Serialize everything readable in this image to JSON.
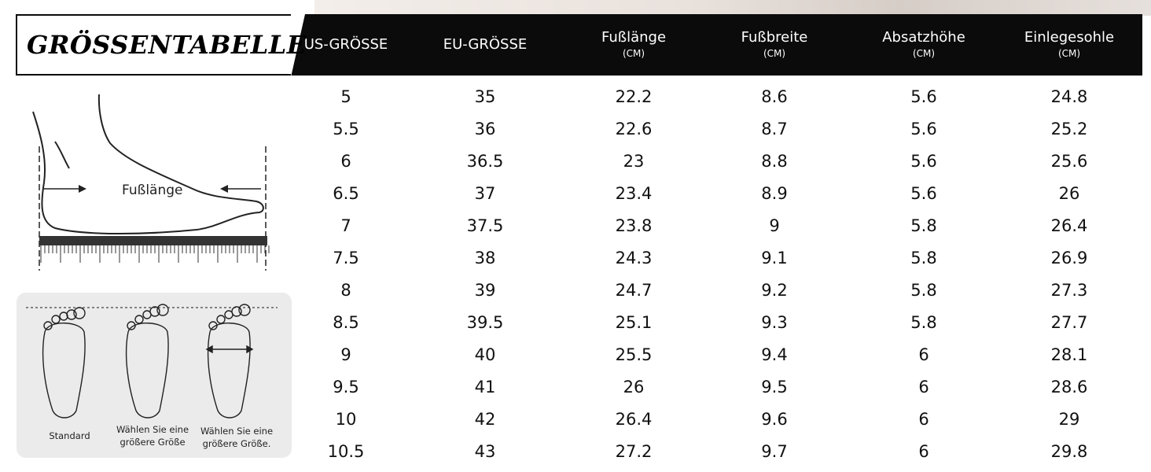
{
  "title": "GRÖSSENTABELLE",
  "columns": [
    {
      "main": "US-GRÖSSE",
      "unit": ""
    },
    {
      "main": "EU-GRÖSSE",
      "unit": ""
    },
    {
      "main": "Fußlänge",
      "unit": "(CM)"
    },
    {
      "main": "Fußbreite",
      "unit": "(CM)"
    },
    {
      "main": "Absatzhöhe",
      "unit": "(CM)"
    },
    {
      "main": "Einlegesohle",
      "unit": "(CM)"
    }
  ],
  "rows": [
    [
      "5",
      "35",
      "22.2",
      "8.6",
      "5.6",
      "24.8"
    ],
    [
      "5.5",
      "36",
      "22.6",
      "8.7",
      "5.6",
      "25.2"
    ],
    [
      "6",
      "36.5",
      "23",
      "8.8",
      "5.6",
      "25.6"
    ],
    [
      "6.5",
      "37",
      "23.4",
      "8.9",
      "5.6",
      "26"
    ],
    [
      "7",
      "37.5",
      "23.8",
      "9",
      "5.8",
      "26.4"
    ],
    [
      "7.5",
      "38",
      "24.3",
      "9.1",
      "5.8",
      "26.9"
    ],
    [
      "8",
      "39",
      "24.7",
      "9.2",
      "5.8",
      "27.3"
    ],
    [
      "8.5",
      "39.5",
      "25.1",
      "9.3",
      "5.8",
      "27.7"
    ],
    [
      "9",
      "40",
      "25.5",
      "9.4",
      "6",
      "28.1"
    ],
    [
      "9.5",
      "41",
      "26",
      "9.5",
      "6",
      "28.6"
    ],
    [
      "10",
      "42",
      "26.4",
      "9.6",
      "6",
      "29"
    ],
    [
      "10.5",
      "43",
      "27.2",
      "9.7",
      "6",
      "29.8"
    ]
  ],
  "illustration": {
    "foot_label": "Fußlänge"
  },
  "toe_panel": {
    "captions": [
      {
        "line1": "Standard",
        "line2": ""
      },
      {
        "line1": "Wählen Sie eine",
        "line2": "größere Größe"
      },
      {
        "line1": "Wählen Sie eine",
        "line2": "größere Größe."
      }
    ]
  }
}
